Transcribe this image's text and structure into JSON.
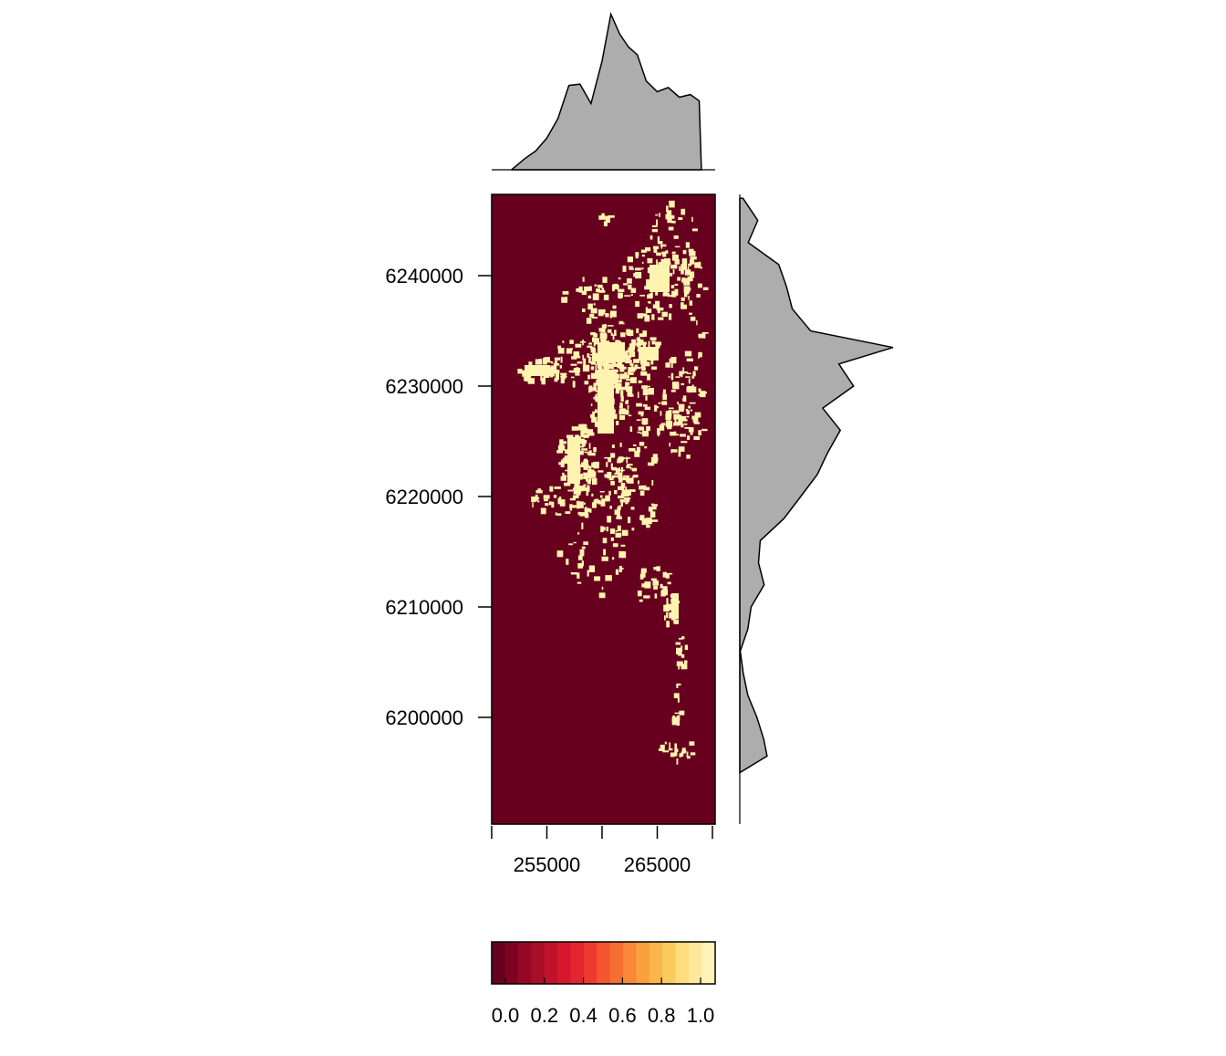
{
  "chart_data": {
    "type": "heatmap",
    "title": "",
    "xlabel": "",
    "ylabel": "",
    "x_ticks": [
      250000,
      255000,
      260000,
      265000,
      270000
    ],
    "x_tick_labels": [
      "255000",
      "265000"
    ],
    "x_tick_labeled_values": [
      255000,
      265000
    ],
    "xlim": [
      250000,
      270300
    ],
    "y_ticks": [
      6200000,
      6210000,
      6220000,
      6230000,
      6240000
    ],
    "y_tick_labels": [
      "6200000",
      "6210000",
      "6220000",
      "6230000",
      "6240000"
    ],
    "ylim": [
      6190000,
      6247200
    ],
    "colorbar": {
      "range": [
        0,
        1
      ],
      "tick_values": [
        0.0,
        0.2,
        0.4,
        0.6,
        0.8,
        1.0
      ],
      "tick_labels": [
        "0.0",
        "0.2",
        "0.4",
        "0.6",
        "0.8",
        "1.0"
      ],
      "colors": [
        "#67001f",
        "#7e0322",
        "#940825",
        "#a90e28",
        "#c0122b",
        "#d5182c",
        "#e2252f",
        "#ee3a2e",
        "#f3552f",
        "#f56f33",
        "#f78938",
        "#f9a03e",
        "#fbb64b",
        "#fccb5e",
        "#fddd7c",
        "#fee99b",
        "#fff3b7"
      ]
    },
    "raster_background": "#67001f",
    "raster_foreground": "#fff3b0",
    "marginal_fill": "#adadad",
    "top_marginal_x": [
      251800,
      253000,
      254000,
      255000,
      256000,
      257000,
      258000,
      259000,
      260000,
      260800,
      261600,
      262400,
      263200,
      264000,
      265000,
      266000,
      267000,
      268000,
      268800,
      269000
    ],
    "top_marginal_density": [
      0.0,
      0.06,
      0.12,
      0.22,
      0.35,
      0.55,
      0.55,
      0.45,
      0.68,
      0.98,
      0.85,
      0.8,
      0.75,
      0.55,
      0.5,
      0.52,
      0.48,
      0.5,
      0.45,
      0.0
    ],
    "right_marginal_y": [
      6247000,
      6245000,
      6243000,
      6241000,
      6239000,
      6237000,
      6235000,
      6233500,
      6232000,
      6230000,
      6228000,
      6226000,
      6224000,
      6222000,
      6220000,
      6218000,
      6216000,
      6214000,
      6212000,
      6210000,
      6208000,
      6206000,
      6204000,
      6202000,
      6200000,
      6198000,
      6196500,
      6195000
    ],
    "right_marginal_density": [
      0.02,
      0.12,
      0.08,
      0.25,
      0.3,
      0.35,
      0.42,
      0.95,
      0.65,
      0.7,
      0.5,
      0.6,
      0.55,
      0.5,
      0.4,
      0.3,
      0.12,
      0.1,
      0.18,
      0.1,
      0.05,
      0.02,
      0.02,
      0.05,
      0.12,
      0.15,
      0.18,
      0.0
    ]
  }
}
